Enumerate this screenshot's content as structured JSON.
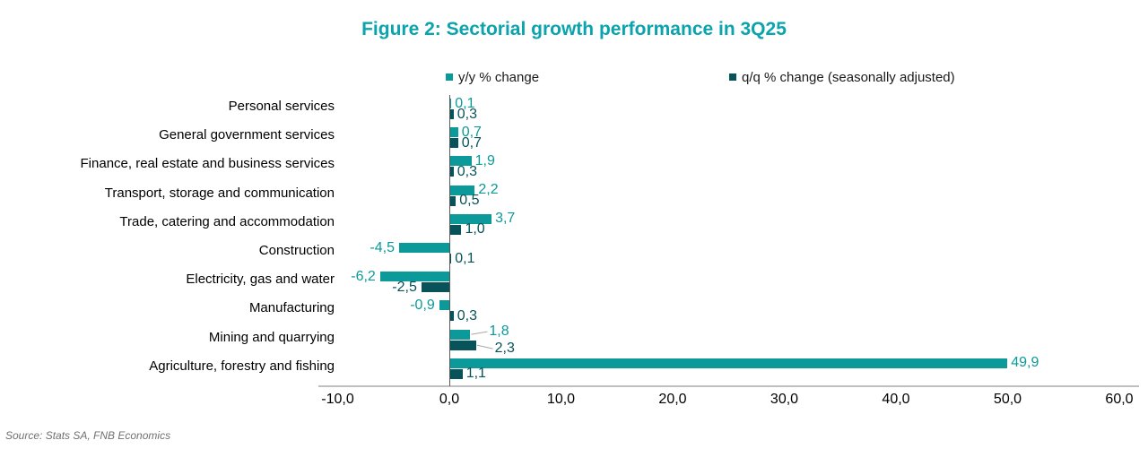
{
  "title": "Figure 2: Sectorial growth performance in 3Q25",
  "source": "Source: Stats SA, FNB Economics",
  "colors": {
    "title": "#0ba3ae",
    "series_yy": "#0c9999",
    "series_qq": "#085259",
    "axis_line": "#bfbfbf",
    "zero_line": "#595959",
    "leader_line": "#a8a8a8",
    "source_text": "#707070"
  },
  "chart_data": {
    "type": "bar",
    "orientation": "horizontal",
    "title": "Figure 2: Sectorial growth performance in 3Q25",
    "categories": [
      "Personal services",
      "General government services",
      "Finance, real estate and business services",
      "Transport, storage and communication",
      "Trade, catering and accommodation",
      "Construction",
      "Electricity, gas and water",
      "Manufacturing",
      "Mining and quarrying",
      "Agriculture, forestry and fishing"
    ],
    "series": [
      {
        "name": "y/y % change",
        "color": "#0c9999",
        "values": [
          0.1,
          0.7,
          1.9,
          2.2,
          3.7,
          -4.5,
          -6.2,
          -0.9,
          1.8,
          49.9
        ]
      },
      {
        "name": "q/q % change (seasonally adjusted)",
        "color": "#085259",
        "values": [
          0.3,
          0.7,
          0.3,
          0.5,
          1.0,
          0.1,
          -2.5,
          0.3,
          2.3,
          1.1
        ]
      }
    ],
    "xlim": [
      -10,
      60
    ],
    "x_tick_values": [
      -10,
      0,
      10,
      20,
      30,
      40,
      50,
      60
    ],
    "x_tick_labels": [
      "-10,0",
      "0,0",
      "10,0",
      "20,0",
      "30,0",
      "40,0",
      "50,0",
      "60,0"
    ],
    "decimal_separator": ",",
    "data_labels": true,
    "grid": false,
    "legend_position": "top",
    "leader_line_categories": [
      "Mining and quarrying"
    ]
  }
}
